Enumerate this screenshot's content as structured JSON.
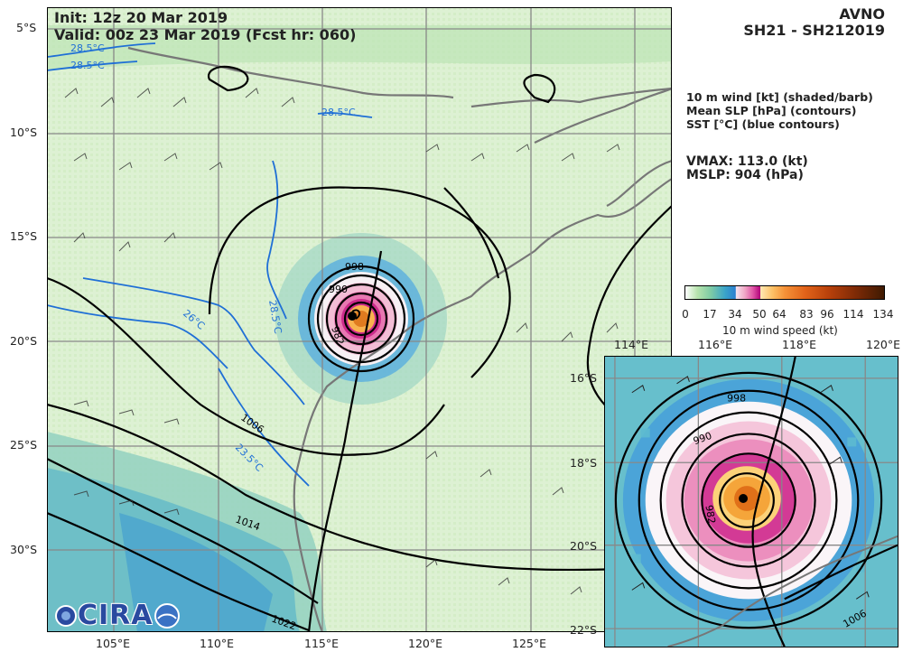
{
  "header": {
    "init": "Init:   12z 20 Mar 2019",
    "valid": "Valid: 00z 23 Mar 2019 (Fcst hr: 060)"
  },
  "model": {
    "name": "AVNO",
    "storm_id": "SH21 - SH212019"
  },
  "legend": {
    "wind": "10 m wind [kt] (shaded/barb)",
    "slp": "Mean SLP [hPa] (contours)",
    "sst": "SST [°C] (blue contours)"
  },
  "stats": {
    "vmax": "VMAX: 113.0 (kt)",
    "mslp": "MSLP:  904 (hPa)"
  },
  "colorbar": {
    "ticks": [
      "0",
      "17",
      "34",
      "50",
      "64",
      "83",
      "96",
      "114",
      "134"
    ],
    "title": "10 m wind speed (kt)"
  },
  "main_map": {
    "lat_labels": [
      "5°S",
      "10°S",
      "15°S",
      "20°S",
      "25°S",
      "30°S"
    ],
    "lon_labels": [
      "105°E",
      "110°E",
      "115°E",
      "120°E",
      "125°E"
    ],
    "slp_contour_labels": [
      "998",
      "990",
      "982",
      "1006",
      "1014",
      "1022"
    ],
    "sst_contour_labels": [
      "28.5°C",
      "28.5°C",
      "28.5°C",
      "26°C",
      "28.5°C",
      "23.5°C"
    ]
  },
  "inset_map": {
    "lon_labels": [
      "114°E",
      "116°E",
      "118°E",
      "120°E"
    ],
    "lat_labels": [
      "16°S",
      "18°S",
      "20°S",
      "22°S"
    ],
    "slp_contour_labels": [
      "998",
      "990",
      "982",
      "1006"
    ]
  },
  "logo": {
    "text": "CIRA"
  },
  "colors": {
    "land": "#e8f5e0",
    "coast": "#777777",
    "sst_contour": "#1f6fd6",
    "slp_contour": "#000000",
    "grid": "#888888"
  }
}
